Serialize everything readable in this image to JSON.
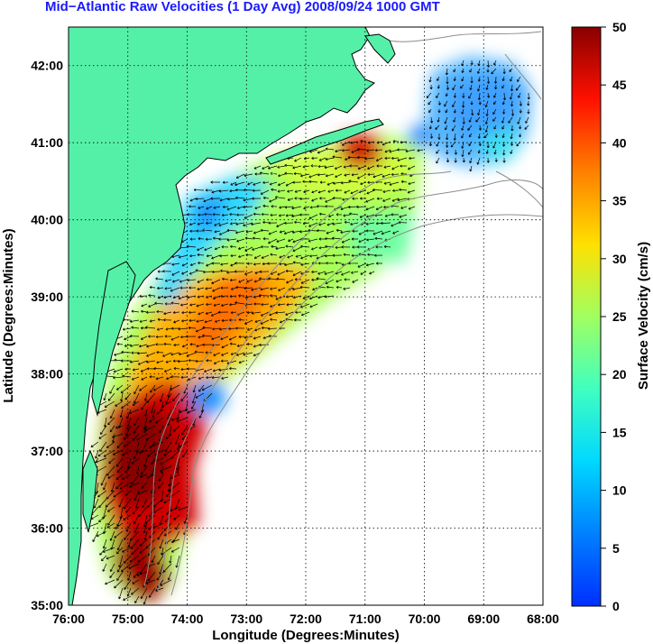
{
  "title": "Mid−Atlantic Raw Velocities (1 Day Avg) 2008/09/24 1000 GMT",
  "axes": {
    "xlabel": "Longitude (Degrees:Minutes)",
    "ylabel": "Latitude (Degrees:Minutes)",
    "x_ticks": [
      "76:00",
      "75:00",
      "74:00",
      "73:00",
      "72:00",
      "71:00",
      "70:00",
      "69:00",
      "68:00"
    ],
    "y_ticks": [
      "35:00",
      "36:00",
      "37:00",
      "38:00",
      "39:00",
      "40:00",
      "41:00",
      "42:00"
    ],
    "xlim": [
      -76,
      -68
    ],
    "ylim": [
      35,
      42.5
    ],
    "grid": true
  },
  "colorbar": {
    "label": "Surface Velocity (cm/s)",
    "ticks": [
      "0",
      "5",
      "10",
      "15",
      "20",
      "25",
      "30",
      "35",
      "40",
      "45",
      "50"
    ],
    "range": [
      0,
      50
    ],
    "colormap": "jet"
  },
  "colors": {
    "land": "#55f0a8",
    "title": "#1a1aff",
    "bathymetry": "#8c8c8c"
  }
}
